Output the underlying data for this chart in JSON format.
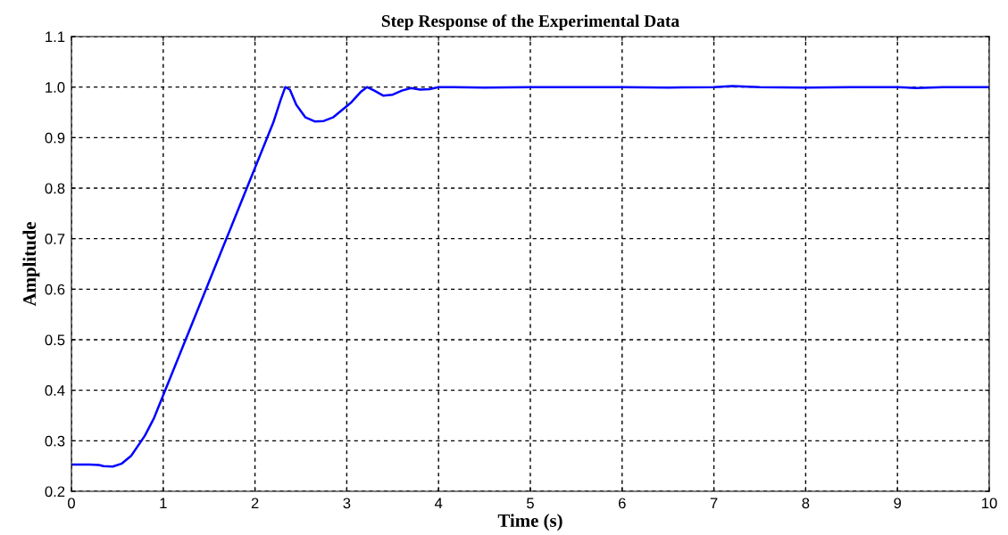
{
  "chart_data": {
    "type": "line",
    "title": "Step Response of the Experimental Data",
    "xlabel": "Time (s)",
    "ylabel": "Amplitude",
    "series": [
      {
        "color": "#0000ff",
        "x": [
          0,
          0.2,
          0.3,
          0.35,
          0.45,
          0.55,
          0.65,
          0.8,
          0.9,
          1.0,
          1.1,
          1.2,
          1.3,
          1.4,
          1.5,
          1.6,
          1.7,
          1.8,
          1.9,
          2.0,
          2.1,
          2.2,
          2.28,
          2.33,
          2.38,
          2.45,
          2.55,
          2.65,
          2.75,
          2.85,
          2.95,
          3.05,
          3.15,
          3.22,
          3.3,
          3.4,
          3.5,
          3.6,
          3.7,
          3.8,
          3.9,
          4.0,
          4.5,
          5.0,
          5.5,
          6.0,
          6.5,
          7.0,
          7.2,
          7.5,
          8.0,
          8.5,
          9.0,
          9.2,
          9.5,
          10.0
        ],
        "values": [
          0.253,
          0.253,
          0.252,
          0.25,
          0.249,
          0.255,
          0.27,
          0.31,
          0.345,
          0.39,
          0.435,
          0.48,
          0.525,
          0.57,
          0.615,
          0.66,
          0.705,
          0.75,
          0.795,
          0.84,
          0.885,
          0.93,
          0.975,
          1.0,
          0.995,
          0.965,
          0.94,
          0.932,
          0.933,
          0.94,
          0.955,
          0.97,
          0.99,
          1.0,
          0.993,
          0.983,
          0.985,
          0.993,
          0.998,
          0.995,
          0.996,
          1.0,
          0.999,
          1.0,
          1.0,
          1.0,
          0.999,
          1.0,
          1.002,
          1.0,
          0.999,
          1.0,
          1.0,
          0.998,
          1.0,
          1.0
        ]
      }
    ],
    "xlim": [
      0,
      10
    ],
    "xticks": [
      0,
      1,
      2,
      3,
      4,
      5,
      6,
      7,
      8,
      9,
      10
    ],
    "ylim": [
      0.2,
      1.1
    ],
    "yticks": [
      0.2,
      0.3,
      0.4,
      0.5,
      0.6,
      0.7,
      0.8,
      0.9,
      {
        "value": 1.0,
        "label": "1.0"
      },
      1.1
    ],
    "grid": true,
    "line_style": "solid",
    "marker": "none"
  }
}
